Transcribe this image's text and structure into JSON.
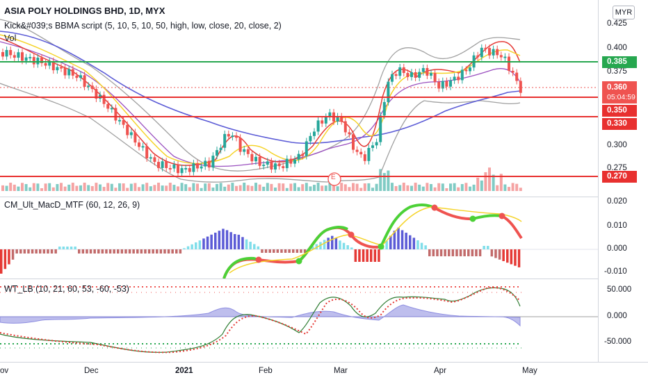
{
  "main": {
    "symbol_title": "ASIA POLY HOLDINGS BHD, 1D, MYX",
    "indicator_line": "Kick&#039;s BBMA script (5, 10, 5, 10, 50, high, low, close, 20, close, 2)",
    "vol_label": "Vol",
    "currency_button": "MYR",
    "y_ticks": [
      "0.425",
      "0.400",
      "0.375",
      "0.300",
      "0.275"
    ],
    "levels": [
      {
        "label": "0.385",
        "color": "#26a74f"
      },
      {
        "label": "0.350",
        "color": "#e8302f"
      },
      {
        "label": "0.330",
        "color": "#e8302f"
      },
      {
        "label": "0.270",
        "color": "#e8302f"
      }
    ],
    "last_price": "0.360",
    "countdown": "05:04:59",
    "earnings_marker": "E"
  },
  "macd": {
    "title": "CM_Ult_MacD_MTF (60, 12, 26, 9)",
    "y_ticks": [
      "0.020",
      "0.010",
      "0.000",
      "-0.010"
    ]
  },
  "wt": {
    "title": "WT_LB (10, 21, 60, 53, -60, -53)",
    "y_ticks": [
      "50.000",
      "0.000",
      "-50.000"
    ]
  },
  "x_axis": {
    "labels": [
      "ov",
      "Dec",
      "2021",
      "Feb",
      "Mar",
      "Apr",
      "May"
    ]
  },
  "colors": {
    "up": "#26a69a",
    "down": "#ef5350",
    "bb": "#9e9e9e",
    "ma50": "#5b5bd6",
    "green_level": "#26a74f",
    "red_level": "#e8302f"
  }
}
